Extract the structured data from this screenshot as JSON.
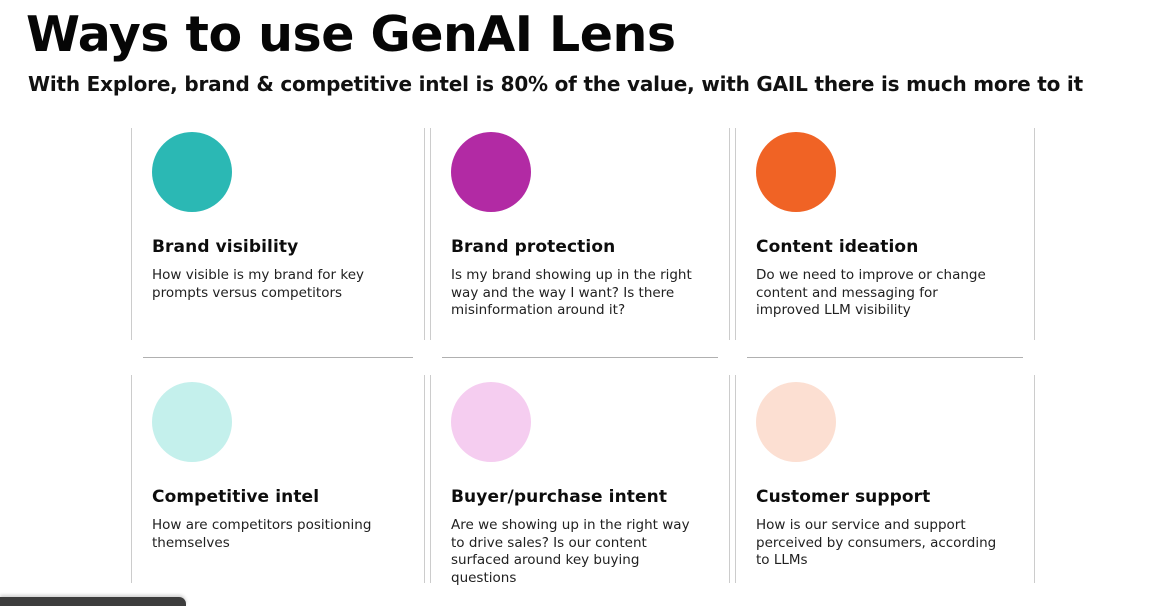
{
  "page": {
    "title": "Ways to use GenAI Lens",
    "subtitle": "With Explore, brand & competitive intel is 80% of the value, with GAIL there is much more to it"
  },
  "colors": {
    "card_border": "#cccccc",
    "row_divider": "#b0b0b0",
    "bottom_bar": "#3d3d3d"
  },
  "cards": [
    {
      "heading": "Brand visibility",
      "description": "How visible is my brand for key prompts versus competitors",
      "circle_color": "#2bb8b4"
    },
    {
      "heading": "Brand protection",
      "description": "Is my brand showing up in the right way and the way I want? Is there misinformation around it?",
      "circle_color": "#b22aa4"
    },
    {
      "heading": "Content ideation",
      "description": "Do we need to improve or change content and messaging for improved LLM visibility",
      "circle_color": "#f06325"
    },
    {
      "heading": "Competitive intel",
      "description": "How are competitors positioning themselves",
      "circle_color": "#c4f0ec"
    },
    {
      "heading": "Buyer/purchase intent",
      "description": "Are we showing up in the right way to drive sales? Is our content surfaced around key buying questions",
      "circle_color": "#f5cdf0"
    },
    {
      "heading": "Customer support",
      "description": "How is our service and support perceived by consumers, according to LLMs",
      "circle_color": "#fcdfd2"
    }
  ]
}
